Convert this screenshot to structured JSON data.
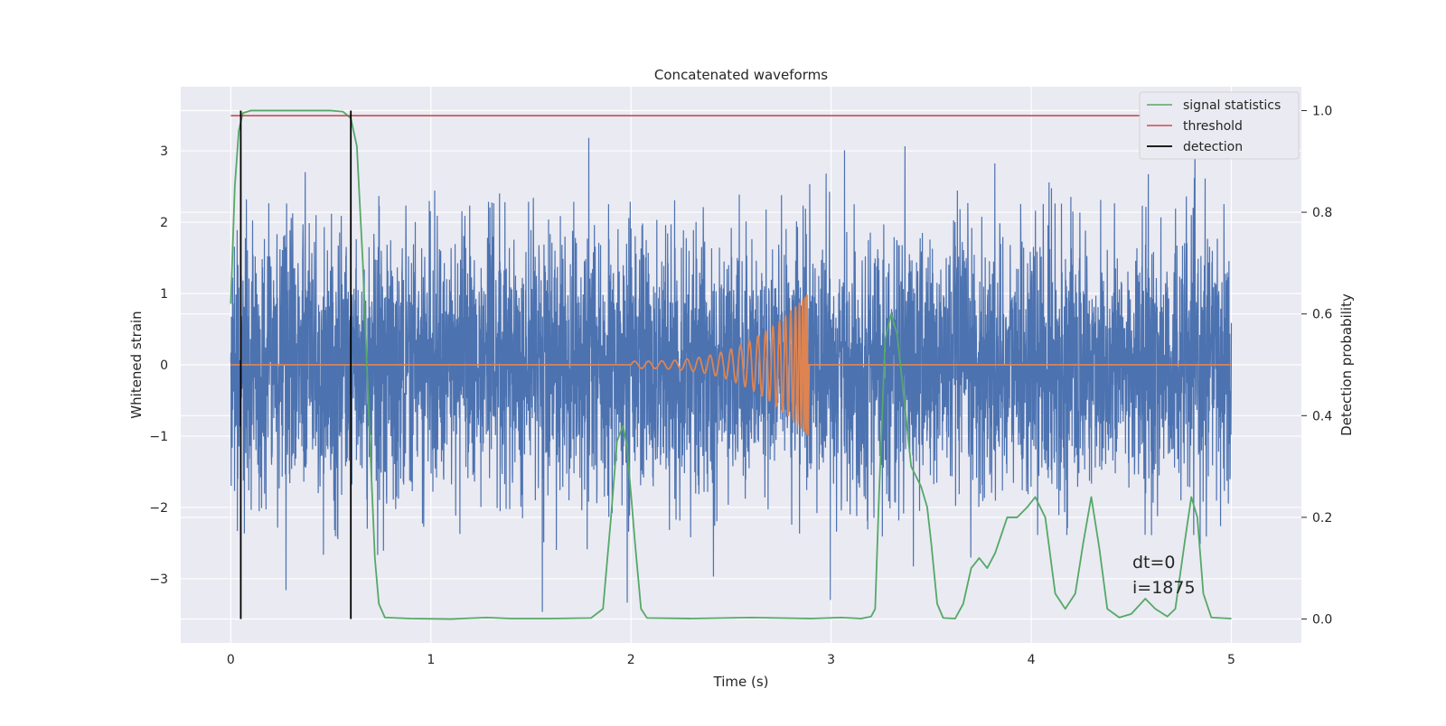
{
  "chart_data": {
    "type": "line",
    "title": "Concatenated waveforms",
    "xlabel": "Time (s)",
    "ylabel_left": "Whitened strain",
    "ylabel_right": "Detection probability",
    "xlim": [
      -0.25,
      5.35
    ],
    "ylim_left": [
      -3.9,
      3.9
    ],
    "ylim_right": [
      -0.047,
      1.047
    ],
    "x_ticks": [
      "0",
      "1",
      "2",
      "3",
      "4",
      "5"
    ],
    "x_tick_values": [
      0,
      1,
      2,
      3,
      4,
      5
    ],
    "y_left_ticks": [
      "−3",
      "−2",
      "−1",
      "0",
      "1",
      "2",
      "3"
    ],
    "y_left_tick_values": [
      -3,
      -2,
      -1,
      0,
      1,
      2,
      3
    ],
    "y_right_ticks": [
      "0.0",
      "0.2",
      "0.4",
      "0.6",
      "0.8",
      "1.0"
    ],
    "y_right_tick_values": [
      0.0,
      0.2,
      0.4,
      0.6,
      0.8,
      1.0
    ],
    "grid": true,
    "legend_position": "top-right",
    "colors": {
      "background": "#eaeaf2",
      "grid": "#ffffff",
      "strain": "#4c72b0",
      "template": "#dd8452",
      "statistics": "#55a868",
      "threshold": "#c44e52",
      "detection": "#000000"
    },
    "series": [
      {
        "name": "",
        "axis": "left",
        "description_hidden": true,
        "style": "noise",
        "x_range": [
          0,
          5
        ],
        "std": 0.9,
        "peak_range": [
          -3.6,
          3.6
        ]
      },
      {
        "name": "",
        "axis": "left",
        "style": "chirp",
        "x_range": [
          2.0,
          2.88
        ],
        "amplitude_end": 1.0
      },
      {
        "name": "signal statistics",
        "axis": "right",
        "points": [
          [
            0.0,
            0.62
          ],
          [
            0.02,
            0.85
          ],
          [
            0.04,
            0.96
          ],
          [
            0.06,
            0.995
          ],
          [
            0.1,
            1.0
          ],
          [
            0.3,
            1.0
          ],
          [
            0.5,
            1.0
          ],
          [
            0.56,
            0.998
          ],
          [
            0.6,
            0.985
          ],
          [
            0.63,
            0.93
          ],
          [
            0.66,
            0.7
          ],
          [
            0.69,
            0.4
          ],
          [
            0.72,
            0.12
          ],
          [
            0.74,
            0.03
          ],
          [
            0.77,
            0.003
          ],
          [
            0.9,
            0.001
          ],
          [
            1.1,
            0.0
          ],
          [
            1.28,
            0.003
          ],
          [
            1.4,
            0.001
          ],
          [
            1.6,
            0.001
          ],
          [
            1.8,
            0.002
          ],
          [
            1.86,
            0.02
          ],
          [
            1.9,
            0.2
          ],
          [
            1.93,
            0.35
          ],
          [
            1.96,
            0.38
          ],
          [
            1.98,
            0.34
          ],
          [
            2.02,
            0.15
          ],
          [
            2.05,
            0.02
          ],
          [
            2.08,
            0.002
          ],
          [
            2.3,
            0.001
          ],
          [
            2.6,
            0.003
          ],
          [
            2.9,
            0.001
          ],
          [
            3.05,
            0.003
          ],
          [
            3.15,
            0.001
          ],
          [
            3.2,
            0.005
          ],
          [
            3.22,
            0.02
          ],
          [
            3.24,
            0.25
          ],
          [
            3.27,
            0.55
          ],
          [
            3.3,
            0.6
          ],
          [
            3.33,
            0.56
          ],
          [
            3.36,
            0.45
          ],
          [
            3.4,
            0.3
          ],
          [
            3.45,
            0.26
          ],
          [
            3.48,
            0.22
          ],
          [
            3.5,
            0.15
          ],
          [
            3.53,
            0.03
          ],
          [
            3.56,
            0.002
          ],
          [
            3.62,
            0.001
          ],
          [
            3.66,
            0.03
          ],
          [
            3.7,
            0.1
          ],
          [
            3.74,
            0.12
          ],
          [
            3.78,
            0.1
          ],
          [
            3.82,
            0.13
          ],
          [
            3.88,
            0.2
          ],
          [
            3.93,
            0.2
          ],
          [
            3.98,
            0.22
          ],
          [
            4.02,
            0.24
          ],
          [
            4.07,
            0.2
          ],
          [
            4.12,
            0.05
          ],
          [
            4.17,
            0.02
          ],
          [
            4.22,
            0.05
          ],
          [
            4.26,
            0.15
          ],
          [
            4.3,
            0.24
          ],
          [
            4.34,
            0.14
          ],
          [
            4.38,
            0.02
          ],
          [
            4.44,
            0.003
          ],
          [
            4.5,
            0.01
          ],
          [
            4.57,
            0.04
          ],
          [
            4.62,
            0.02
          ],
          [
            4.68,
            0.005
          ],
          [
            4.72,
            0.02
          ],
          [
            4.77,
            0.16
          ],
          [
            4.8,
            0.24
          ],
          [
            4.83,
            0.2
          ],
          [
            4.86,
            0.05
          ],
          [
            4.9,
            0.003
          ],
          [
            5.0,
            0.001
          ]
        ]
      },
      {
        "name": "threshold",
        "axis": "right",
        "points": [
          [
            0.0,
            0.99
          ],
          [
            5.0,
            0.99
          ]
        ]
      },
      {
        "name": "detection",
        "axis": "right",
        "style": "vlines",
        "x": [
          0.05,
          0.6
        ],
        "y_range": [
          0.0,
          1.0
        ]
      }
    ],
    "annotations": [
      "dt=0",
      "i=1875"
    ]
  }
}
